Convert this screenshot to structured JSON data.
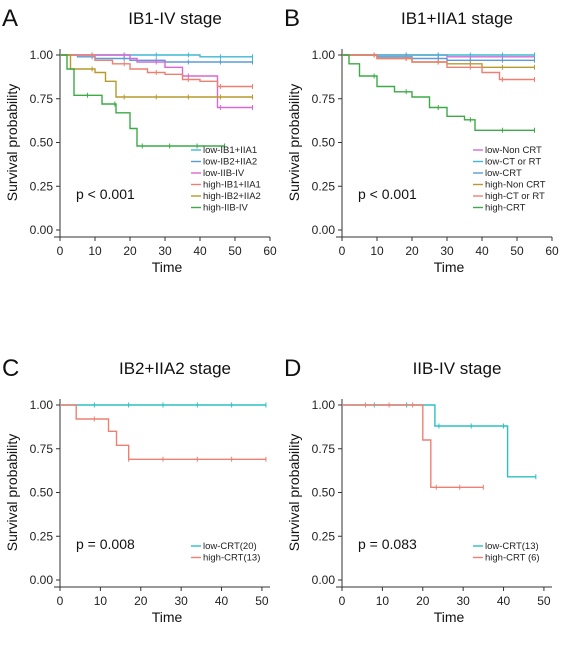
{
  "chart_data": [
    {
      "type": "line",
      "panel_label": "A",
      "title": "IB1-IV stage",
      "xlabel": "Time",
      "ylabel": "Survival probability",
      "xlim": [
        0,
        60
      ],
      "ylim": [
        0,
        1
      ],
      "x_ticks": [
        0,
        10,
        20,
        30,
        40,
        50,
        60
      ],
      "y_ticks": [
        0.0,
        0.25,
        0.5,
        0.75,
        1.0
      ],
      "x_tick_labels": [
        "0",
        "10",
        "20",
        "30",
        "40",
        "50",
        "60"
      ],
      "y_tick_labels": [
        "0.00",
        "0.25",
        "0.50",
        "0.75",
        "1.00"
      ],
      "p_value": "p < 0.001",
      "grid": false,
      "legend_position": "bottom-right",
      "series": [
        {
          "name": "low-IB1+IIA1",
          "color": "#3FB8D4",
          "x": [
            0,
            40,
            55
          ],
          "y": [
            1.0,
            0.99,
            0.99
          ]
        },
        {
          "name": "low-IB2+IIA2",
          "color": "#5B9BD8",
          "x": [
            0,
            5,
            10,
            20,
            30,
            55
          ],
          "y": [
            1.0,
            0.99,
            0.98,
            0.97,
            0.96,
            0.96
          ]
        },
        {
          "name": "low-IIB-IV",
          "color": "#D968D4",
          "x": [
            0,
            20,
            22,
            30,
            35,
            45,
            55
          ],
          "y": [
            1.0,
            0.98,
            0.96,
            0.93,
            0.88,
            0.7,
            0.7
          ]
        },
        {
          "name": "high-IB1+IIA1",
          "color": "#EE8072",
          "x": [
            0,
            10,
            15,
            20,
            25,
            30,
            35,
            40,
            45,
            50,
            55
          ],
          "y": [
            1.0,
            0.97,
            0.95,
            0.92,
            0.9,
            0.89,
            0.86,
            0.85,
            0.82,
            0.82,
            0.82
          ]
        },
        {
          "name": "high-IB2+IIA2",
          "color": "#B89A2C",
          "x": [
            0,
            3,
            10,
            13,
            16,
            55
          ],
          "y": [
            1.0,
            0.92,
            0.9,
            0.85,
            0.76,
            0.76
          ]
        },
        {
          "name": "high-IIB-IV",
          "color": "#3DAA48",
          "x": [
            0,
            2,
            4,
            10,
            12,
            16,
            20,
            22,
            47
          ],
          "y": [
            1.0,
            0.92,
            0.77,
            0.77,
            0.72,
            0.67,
            0.58,
            0.48,
            0.48
          ]
        }
      ]
    },
    {
      "type": "line",
      "panel_label": "B",
      "title": "IB1+IIA1 stage",
      "xlabel": "Time",
      "ylabel": "Survival probability",
      "xlim": [
        0,
        60
      ],
      "ylim": [
        0,
        1
      ],
      "x_ticks": [
        0,
        10,
        20,
        30,
        40,
        50,
        60
      ],
      "y_ticks": [
        0.0,
        0.25,
        0.5,
        0.75,
        1.0
      ],
      "x_tick_labels": [
        "0",
        "10",
        "20",
        "30",
        "40",
        "50",
        "60"
      ],
      "y_tick_labels": [
        "0.00",
        "0.25",
        "0.50",
        "0.75",
        "1.00"
      ],
      "p_value": "p < 0.001",
      "grid": false,
      "legend_position": "bottom-right",
      "series": [
        {
          "name": "low-Non CRT",
          "color": "#D968D4",
          "x": [
            0,
            30,
            55
          ],
          "y": [
            1.0,
            0.99,
            0.99
          ]
        },
        {
          "name": "low-CT or RT",
          "color": "#3FB8D4",
          "x": [
            0,
            55
          ],
          "y": [
            1.0,
            1.0
          ]
        },
        {
          "name": "low-CRT",
          "color": "#5B9BD8",
          "x": [
            0,
            10,
            20,
            30,
            55
          ],
          "y": [
            1.0,
            0.99,
            0.98,
            0.97,
            0.97
          ]
        },
        {
          "name": "high-Non CRT",
          "color": "#B89A2C",
          "x": [
            0,
            10,
            20,
            30,
            40,
            55
          ],
          "y": [
            1.0,
            0.98,
            0.96,
            0.95,
            0.93,
            0.93
          ]
        },
        {
          "name": "high-CT or RT",
          "color": "#EE8072",
          "x": [
            0,
            10,
            20,
            30,
            40,
            45,
            55
          ],
          "y": [
            1.0,
            0.98,
            0.96,
            0.93,
            0.9,
            0.86,
            0.86
          ]
        },
        {
          "name": "high-CRT",
          "color": "#3DAA48",
          "x": [
            0,
            2,
            5,
            10,
            15,
            20,
            25,
            30,
            35,
            38,
            55
          ],
          "y": [
            1.0,
            0.95,
            0.88,
            0.82,
            0.79,
            0.76,
            0.7,
            0.65,
            0.63,
            0.57,
            0.57
          ]
        }
      ]
    },
    {
      "type": "line",
      "panel_label": "C",
      "title": "IB2+IIA2 stage",
      "xlabel": "Time",
      "ylabel": "Survival probability",
      "xlim": [
        0,
        52
      ],
      "ylim": [
        0,
        1
      ],
      "x_ticks": [
        0,
        10,
        20,
        30,
        40,
        50
      ],
      "y_ticks": [
        0.0,
        0.25,
        0.5,
        0.75,
        1.0
      ],
      "x_tick_labels": [
        "0",
        "10",
        "20",
        "30",
        "40",
        "50"
      ],
      "y_tick_labels": [
        "0.00",
        "0.25",
        "0.50",
        "0.75",
        "1.00"
      ],
      "p_value": "p = 0.008",
      "grid": false,
      "legend_position": "bottom-right",
      "series": [
        {
          "name": "low-CRT(20)",
          "color": "#2BC0C4",
          "x": [
            0,
            51
          ],
          "y": [
            1.0,
            1.0
          ]
        },
        {
          "name": "high-CRT(13)",
          "color": "#EE8072",
          "x": [
            0,
            4,
            12,
            14,
            17,
            51
          ],
          "y": [
            1.0,
            0.92,
            0.85,
            0.77,
            0.69,
            0.69
          ]
        }
      ]
    },
    {
      "type": "line",
      "panel_label": "D",
      "title": "IIB-IV stage",
      "xlabel": "Time",
      "ylabel": "Survival probability",
      "xlim": [
        0,
        52
      ],
      "ylim": [
        0,
        1
      ],
      "x_ticks": [
        0,
        10,
        20,
        30,
        40,
        50
      ],
      "y_ticks": [
        0.0,
        0.25,
        0.5,
        0.75,
        1.0
      ],
      "x_tick_labels": [
        "0",
        "10",
        "20",
        "30",
        "40",
        "50"
      ],
      "y_tick_labels": [
        "0.00",
        "0.25",
        "0.50",
        "0.75",
        "1.00"
      ],
      "p_value": "p = 0.083",
      "grid": false,
      "legend_position": "bottom-right",
      "series": [
        {
          "name": "low-CRT(13)",
          "color": "#2BC0C4",
          "x": [
            0,
            23,
            41,
            48
          ],
          "y": [
            1.0,
            0.88,
            0.59,
            0.59
          ]
        },
        {
          "name": "high-CRT (6)",
          "color": "#EE8072",
          "x": [
            0,
            20,
            22,
            35
          ],
          "y": [
            1.0,
            0.8,
            0.53,
            0.53
          ]
        }
      ]
    }
  ]
}
